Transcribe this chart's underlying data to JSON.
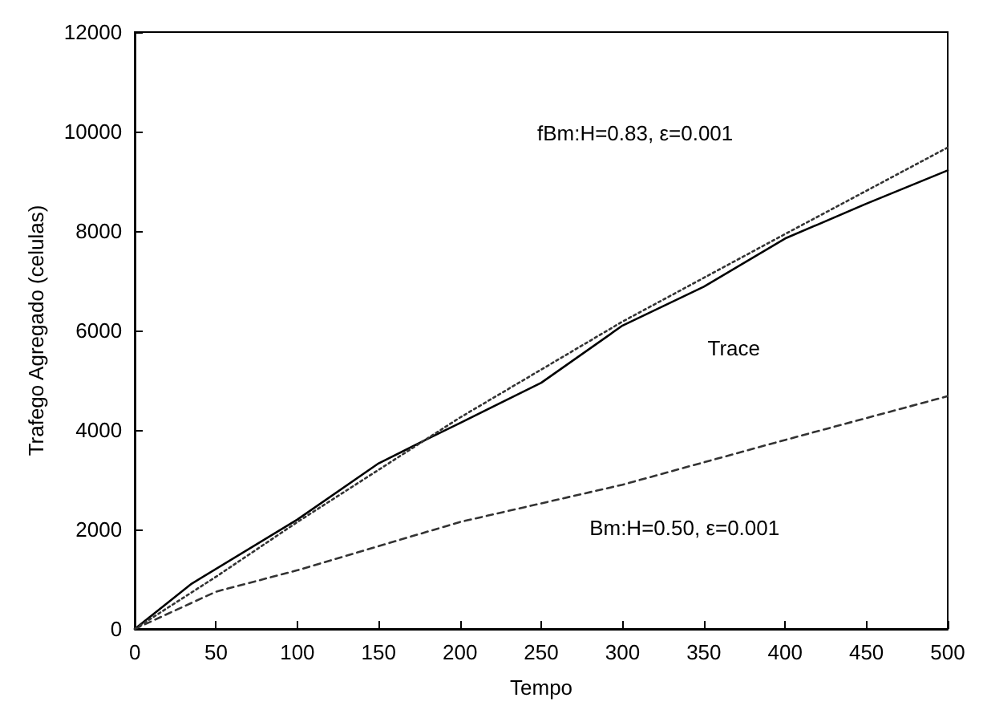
{
  "chart_data": {
    "type": "line",
    "xlabel": "Tempo",
    "ylabel": "Trafego Agregado (celulas)",
    "xlim": [
      0,
      500
    ],
    "ylim": [
      0,
      12000
    ],
    "xticks": [
      0,
      50,
      100,
      150,
      200,
      250,
      300,
      350,
      400,
      450,
      500
    ],
    "yticks": [
      0,
      2000,
      4000,
      6000,
      8000,
      10000,
      12000
    ],
    "grid": false,
    "marker": "none",
    "series": [
      {
        "color": "#000000",
        "line_style": "solid",
        "x": [
          0,
          35,
          100,
          150,
          180,
          200,
          250,
          300,
          350,
          400,
          450,
          500
        ],
        "values": [
          0,
          910,
          2200,
          3330,
          3820,
          4140,
          4950,
          6100,
          6880,
          7850,
          8550,
          9220
        ]
      },
      {
        "color": "#333333",
        "line_style": "dotted",
        "x": [
          0,
          50,
          100,
          200,
          300,
          400,
          500
        ],
        "values": [
          0,
          1050,
          2150,
          4250,
          6180,
          7940,
          9680
        ]
      },
      {
        "color": "#333333",
        "line_style": "dashed",
        "x": [
          0,
          50,
          100,
          200,
          300,
          400,
          500
        ],
        "values": [
          0,
          750,
          1180,
          2150,
          2900,
          3800,
          4680
        ]
      }
    ],
    "annotations": [
      "fBm:H=0.83, ε=0.001",
      "Trace",
      "Bm:H=0.50, ε=0.001"
    ]
  }
}
